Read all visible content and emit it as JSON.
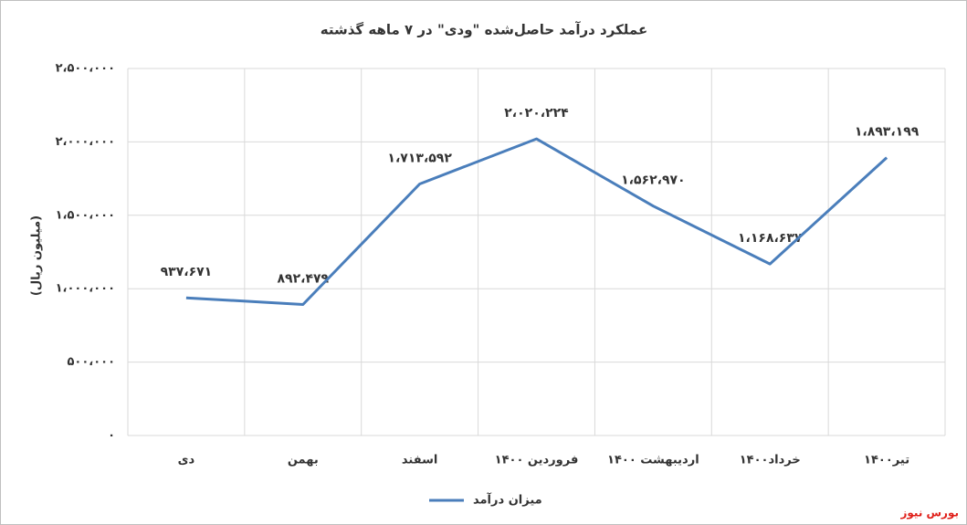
{
  "chart_data": {
    "type": "line",
    "title": "عملکرد درآمد حاصل‌شده \"ودی\" در ۷ ماهه گذشته",
    "y_label": "(میلیون ریال)",
    "categories": [
      "دی",
      "بهمن",
      "اسفند",
      "فروردین ۱۴۰۰",
      "اردیبهشت ۱۴۰۰",
      "خرداد۱۴۰۰",
      "تیر۱۴۰۰"
    ],
    "series": [
      {
        "name": "میزان درآمد",
        "color": "#4a7ebb",
        "values": [
          937671,
          892479,
          1713592,
          2020224,
          1562970,
          1168637,
          1893199
        ],
        "value_labels": [
          "۹۳۷،۶۷۱",
          "۸۹۲،۴۷۹",
          "۱،۷۱۳،۵۹۲",
          "۲،۰۲۰،۲۲۴",
          "۱،۵۶۲،۹۷۰",
          "۱،۱۶۸،۶۳۷",
          "۱،۸۹۳،۱۹۹"
        ]
      }
    ],
    "ylim": [
      0,
      2500000
    ],
    "yticks": [
      {
        "value": 0,
        "label": "۰"
      },
      {
        "value": 500000,
        "label": "۵۰۰،۰۰۰"
      },
      {
        "value": 1000000,
        "label": "۱،۰۰۰،۰۰۰"
      },
      {
        "value": 1500000,
        "label": "۱،۵۰۰،۰۰۰"
      },
      {
        "value": 2000000,
        "label": "۲،۰۰۰،۰۰۰"
      },
      {
        "value": 2500000,
        "label": "۲،۵۰۰،۰۰۰"
      }
    ],
    "grid": true,
    "legend": "bottom",
    "watermark": "بورس نیوز"
  }
}
